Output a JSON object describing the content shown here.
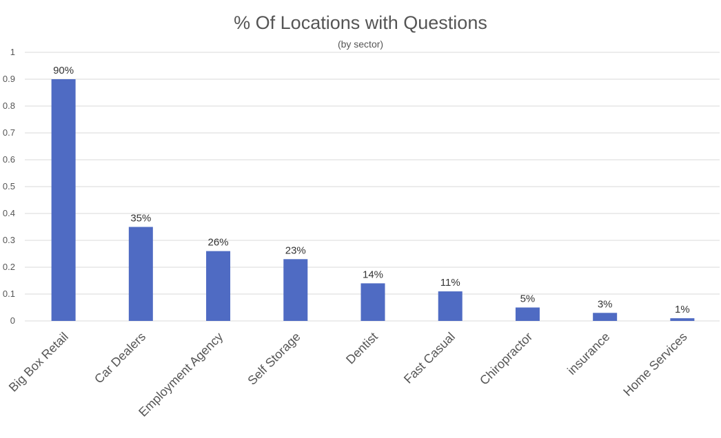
{
  "chart_data": {
    "type": "bar",
    "title": "% Of Locations with Questions",
    "subtitle": "(by sector)",
    "xlabel": "",
    "ylabel": "",
    "categories": [
      "Big Box Retail",
      "Car Dealers",
      "Employment Agency",
      "Self Storage",
      "Dentist",
      "Fast Casual",
      "Chiropractor",
      "insurance",
      "Home Services"
    ],
    "values": [
      0.9,
      0.35,
      0.26,
      0.23,
      0.14,
      0.11,
      0.05,
      0.03,
      0.01
    ],
    "data_labels": [
      "90%",
      "35%",
      "26%",
      "23%",
      "14%",
      "11%",
      "5%",
      "3%",
      "1%"
    ],
    "ylim": [
      0,
      1
    ],
    "yticks": [
      "0",
      "0.1",
      "0.2",
      "0.3",
      "0.4",
      "0.5",
      "0.6",
      "0.7",
      "0.8",
      "0.9",
      "1"
    ],
    "grid": true,
    "legend": "none",
    "colors": {
      "bar": "#4F6BC3",
      "grid": "#D9D9D9",
      "text": "#555555"
    }
  }
}
